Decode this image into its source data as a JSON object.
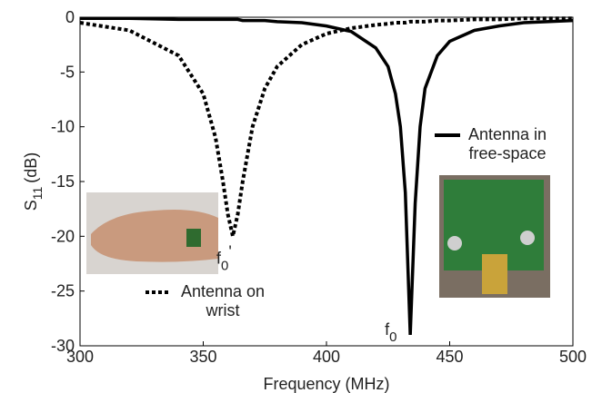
{
  "chart_data": {
    "type": "line",
    "xlabel": "Frequency (MHz)",
    "ylabel": {
      "main": "S",
      "sub": "11",
      "unit": "(dB)"
    },
    "x": [
      300,
      320,
      340,
      350,
      355,
      358,
      360,
      362,
      364,
      366,
      370,
      375,
      380,
      390,
      400,
      410,
      420,
      425,
      428,
      430,
      432,
      434,
      436,
      438,
      440,
      445,
      450,
      460,
      470,
      480,
      500
    ],
    "series": [
      {
        "name": "Antenna in free-space",
        "color": "#000000",
        "style": "solid",
        "values": [
          -0.1,
          -0.1,
          -0.2,
          -0.2,
          -0.2,
          -0.2,
          -0.2,
          -0.2,
          -0.2,
          -0.3,
          -0.3,
          -0.3,
          -0.4,
          -0.5,
          -0.8,
          -1.3,
          -2.8,
          -4.5,
          -7,
          -10,
          -16,
          -29,
          -17,
          -10,
          -6.5,
          -3.5,
          -2.2,
          -1.2,
          -0.8,
          -0.5,
          -0.3
        ]
      },
      {
        "name": "Antenna on wrist",
        "color": "#000000",
        "style": "dotted",
        "values": [
          -0.5,
          -1.2,
          -3.5,
          -7,
          -11,
          -15,
          -18,
          -20,
          -18,
          -15,
          -10,
          -6.5,
          -4.5,
          -2.5,
          -1.5,
          -1,
          -0.7,
          -0.6,
          -0.5,
          -0.5,
          -0.5,
          -0.4,
          -0.4,
          -0.4,
          -0.4,
          -0.3,
          -0.3,
          -0.2,
          -0.2,
          -0.1,
          -0.1
        ]
      }
    ],
    "annotations": [
      {
        "text": "f",
        "sub": "0",
        "prime": "'",
        "x": 362,
        "y": -20
      },
      {
        "text": "f",
        "sub": "0",
        "x": 434,
        "y": -29
      }
    ],
    "xlim": [
      300,
      500
    ],
    "xticks": [
      300,
      350,
      400,
      450,
      500
    ],
    "ylim": [
      -30,
      0
    ],
    "yticks": [
      0,
      -5,
      -10,
      -15,
      -20,
      -25,
      -30
    ]
  }
}
